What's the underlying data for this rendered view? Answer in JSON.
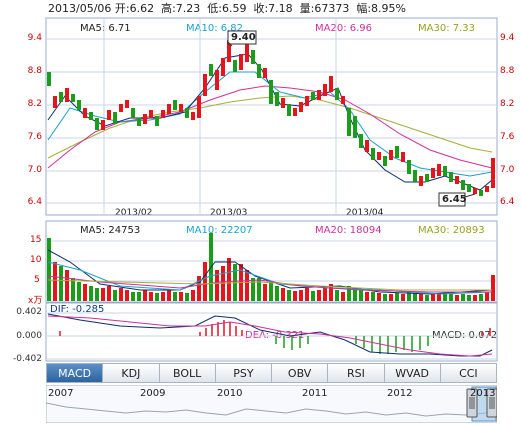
{
  "header": {
    "text": "2013/05/06 开:6.62  高:7.23  低:6.59  收:7.18  量:67373  幅:8.95%"
  },
  "price_panel": {
    "ma_labels": [
      {
        "text": "MA5: 6.71",
        "color": "#0a3d8f"
      },
      {
        "text": "MA10: 6.82",
        "color": "#1aa3c9"
      },
      {
        "text": "MA20: 6.96",
        "color": "#d0309a"
      },
      {
        "text": "MA30: 7.33",
        "color": "#9aa020"
      }
    ],
    "y_ticks": [
      "9.4",
      "8.8",
      "8.2",
      "7.6",
      "7.0",
      "6.4"
    ],
    "high_marker": "9.40",
    "low_marker": "6.45",
    "x_labels": [
      "2013/02",
      "2013/03",
      "2013/04"
    ]
  },
  "volume_panel": {
    "ma_labels": [
      {
        "text": "MA5: 24753",
        "color": "#0a3d8f"
      },
      {
        "text": "MA10: 22207",
        "color": "#1aa3c9"
      },
      {
        "text": "MA20: 18094",
        "color": "#d0309a"
      },
      {
        "text": "MA30: 20893",
        "color": "#9aa020"
      }
    ],
    "y_ticks": [
      "15",
      "10",
      "5"
    ],
    "unit": "x万"
  },
  "macd_panel": {
    "dif_label": "DIF: -0.285",
    "dea_label": "DEA: -0.321",
    "macd_label": "MACD: 0.072",
    "y_ticks": [
      "0.402",
      "0.000",
      "-0.402"
    ]
  },
  "tabs": [
    "MACD",
    "KDJ",
    "BOLL",
    "PSY",
    "OBV",
    "RSI",
    "WVAD",
    "CCI"
  ],
  "active_tab": "MACD",
  "navigator": {
    "years": [
      "2007",
      "2009",
      "2010",
      "2011",
      "2012",
      "2013"
    ]
  },
  "colors": {
    "up": "#e8141b",
    "down": "#1a9e1a",
    "axis": "#cc0000",
    "grid": "#c8d6ea"
  }
}
